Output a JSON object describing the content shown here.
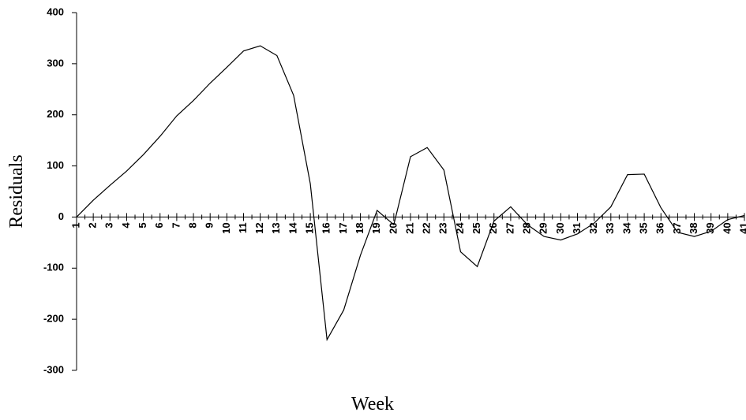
{
  "chart_data": {
    "type": "line",
    "x_label": "Week",
    "y_label": "Residuals",
    "categories": [
      "1",
      "2",
      "3",
      "4",
      "5",
      "6",
      "7",
      "8",
      "9",
      "10",
      "11",
      "12",
      "13",
      "14",
      "15",
      "16",
      "17",
      "18",
      "19",
      "20",
      "21",
      "22",
      "23",
      "24",
      "25",
      "26",
      "27",
      "28",
      "29",
      "30",
      "31",
      "32",
      "33",
      "34",
      "35",
      "36",
      "37",
      "38",
      "39",
      "40",
      "41"
    ],
    "series": [
      {
        "color": "#000000",
        "values": [
          0,
          33,
          62,
          90,
          122,
          158,
          198,
          228,
          262,
          293,
          325,
          335,
          316,
          238,
          65,
          -240,
          -182,
          -75,
          13,
          -15,
          118,
          136,
          92,
          -68,
          -97,
          -8,
          20,
          -15,
          -38,
          -45,
          -33,
          -12,
          20,
          83,
          84,
          18,
          -30,
          -38,
          -28,
          -5,
          3
        ]
      }
    ],
    "ylim": [
      -300,
      400
    ],
    "yticks": [
      -300,
      -200,
      -100,
      0,
      100,
      200,
      300,
      400
    ]
  }
}
